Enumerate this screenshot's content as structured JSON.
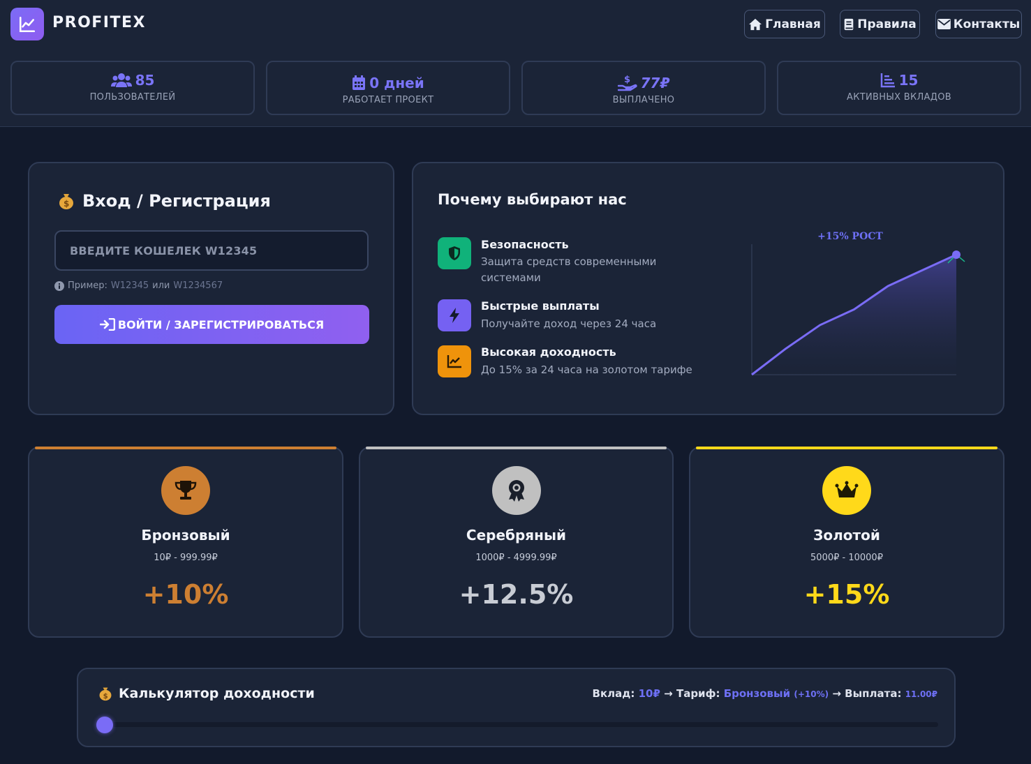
{
  "brand": {
    "name": "PROFITEX"
  },
  "nav": [
    {
      "label": "Главная",
      "icon": "home-icon"
    },
    {
      "label": "Правила",
      "icon": "book-icon"
    },
    {
      "label": "Контакты",
      "icon": "envelope-icon"
    }
  ],
  "stats": [
    {
      "value": "85",
      "label": "ПОЛЬЗОВАТЕЛЕЙ",
      "icon": "users-icon"
    },
    {
      "value": "0 дней",
      "label": "РАБОТАЕТ ПРОЕКТ",
      "icon": "calendar-icon"
    },
    {
      "value": "77₽",
      "label": "ВЫПЛАЧЕНО",
      "icon": "hand-coin-icon"
    },
    {
      "value": "15",
      "label": "АКТИВНЫХ ВКЛАДОВ",
      "icon": "chart-bars-icon"
    }
  ],
  "login": {
    "title": "Вход / Регистрация",
    "placeholder": "ВВЕДИТЕ КОШЕЛЕК W12345",
    "hint_prefix": "Пример:",
    "hint_example_1": "W12345",
    "hint_or": "или",
    "hint_example_2": "W1234567",
    "button_label": "ВОЙТИ / ЗАРЕГИСТРИРОВАТЬСЯ"
  },
  "why": {
    "title": "Почему выбирают нас",
    "features": [
      {
        "title": "Безопасность",
        "desc": "Защита средств современными системами",
        "icon": "shield-icon",
        "color": "#10b27a"
      },
      {
        "title": "Быстрые выплаты",
        "desc": "Получайте доход через 24 часа",
        "icon": "bolt-icon",
        "color": "#7561f2"
      },
      {
        "title": "Высокая доходность",
        "desc": "До 15% за 24 часа на золотом тарифе",
        "icon": "chart-line-icon",
        "color": "#ef930b"
      }
    ],
    "chart_label": "+15% РОСТ"
  },
  "chart_data": {
    "type": "area",
    "title": "+15% РОСТ",
    "x": [
      0,
      1,
      2,
      3,
      4,
      5,
      6
    ],
    "series": [
      {
        "values": [
          0,
          20,
          38,
          50,
          68,
          80,
          92
        ]
      }
    ],
    "ylim": [
      0,
      100
    ],
    "grid": false
  },
  "tariffs": [
    {
      "name": "Бронзовый",
      "range": "10₽ - 999.99₽",
      "rate": "+10%",
      "color": "#cd7f32",
      "icon": "trophy-icon"
    },
    {
      "name": "Серебряный",
      "range": "1000₽ - 4999.99₽",
      "rate": "+12.5%",
      "color": "#c0c0c0",
      "icon": "award-icon"
    },
    {
      "name": "Золотой",
      "range": "5000₽ - 10000₽",
      "rate": "+15%",
      "color": "#ffd91a",
      "icon": "crown-icon"
    }
  ],
  "calculator": {
    "title": "Калькулятор доходности",
    "deposit_label": "Вклад:",
    "deposit_value": "10₽",
    "tariff_label": "Тариф:",
    "tariff_value": "Бронзовый",
    "tariff_rate": "(+10%)",
    "payout_label": "Выплата:",
    "payout_value": "11.00₽",
    "arrow": "→",
    "slider_fraction": 0
  },
  "colors": {
    "accent": "#7a6cf6",
    "background": "#121a2c",
    "card": "#1b2437"
  }
}
